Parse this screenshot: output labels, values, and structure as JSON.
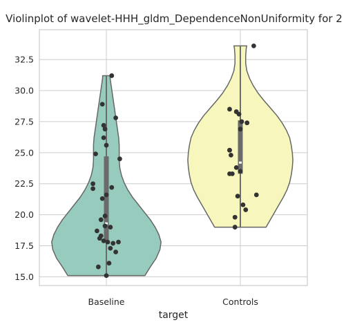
{
  "chart_data": {
    "type": "violin",
    "title": "Violinplot of wavelet-HHH_gldm_DependenceNonUniformity for 2",
    "xlabel": "target",
    "ylabel": "",
    "categories": [
      "Baseline",
      "Controls"
    ],
    "yticks": [
      15.0,
      17.5,
      20.0,
      22.5,
      25.0,
      27.5,
      30.0,
      32.5
    ],
    "ytick_labels": [
      "15.0",
      "17.5",
      "20.0",
      "22.5",
      "25.0",
      "27.5",
      "30.0",
      "32.5"
    ],
    "ylim": [
      14.3,
      34.9
    ],
    "grid": true,
    "colors": {
      "Baseline": "#96cbbe",
      "Controls": "#f7f7bd",
      "edge": "#666666",
      "points": "#333333",
      "grid": "#cccccc",
      "box": "#6b6b6b"
    },
    "series": [
      {
        "name": "Baseline",
        "min": 15.1,
        "q1": 17.8,
        "median": 19.3,
        "q3": 24.7,
        "max": 31.2,
        "density": [
          [
            15.1,
            0.72
          ],
          [
            15.8,
            0.82
          ],
          [
            16.5,
            0.93
          ],
          [
            17.2,
            1.0
          ],
          [
            17.8,
            1.02
          ],
          [
            18.4,
            0.98
          ],
          [
            19.0,
            0.91
          ],
          [
            19.6,
            0.82
          ],
          [
            20.2,
            0.71
          ],
          [
            20.8,
            0.6
          ],
          [
            21.4,
            0.49
          ],
          [
            22.0,
            0.4
          ],
          [
            22.6,
            0.33
          ],
          [
            23.2,
            0.28
          ],
          [
            23.8,
            0.25
          ],
          [
            24.4,
            0.24
          ],
          [
            25.0,
            0.24
          ],
          [
            25.6,
            0.24
          ],
          [
            26.2,
            0.23
          ],
          [
            26.8,
            0.21
          ],
          [
            27.4,
            0.19
          ],
          [
            28.0,
            0.17
          ],
          [
            28.6,
            0.15
          ],
          [
            29.2,
            0.13
          ],
          [
            29.8,
            0.11
          ],
          [
            30.4,
            0.09
          ],
          [
            31.0,
            0.07
          ],
          [
            31.2,
            0.07
          ]
        ],
        "points": [
          [
            0.04,
            31.2
          ],
          [
            -0.03,
            28.9
          ],
          [
            0.07,
            27.8
          ],
          [
            -0.02,
            27.2
          ],
          [
            -0.01,
            26.9
          ],
          [
            -0.02,
            26.2
          ],
          [
            0.0,
            25.6
          ],
          [
            -0.08,
            24.9
          ],
          [
            0.1,
            24.5
          ],
          [
            0.04,
            22.2
          ],
          [
            -0.1,
            22.5
          ],
          [
            -0.1,
            22.1
          ],
          [
            0.0,
            21.6
          ],
          [
            -0.03,
            21.3
          ],
          [
            -0.01,
            19.9
          ],
          [
            -0.04,
            19.6
          ],
          [
            -0.01,
            19.1
          ],
          [
            0.03,
            19.0
          ],
          [
            -0.07,
            18.7
          ],
          [
            -0.04,
            18.3
          ],
          [
            -0.05,
            18.1
          ],
          [
            -0.02,
            17.9
          ],
          [
            0.01,
            17.8
          ],
          [
            0.05,
            17.7
          ],
          [
            0.09,
            17.8
          ],
          [
            0.03,
            17.3
          ],
          [
            0.07,
            17.0
          ],
          [
            -0.06,
            15.8
          ],
          [
            0.02,
            16.1
          ],
          [
            0.0,
            15.1
          ]
        ]
      },
      {
        "name": "Controls",
        "min": 19.0,
        "q1": 23.3,
        "median": 24.2,
        "q3": 27.6,
        "max": 33.6,
        "density": [
          [
            19.0,
            0.48
          ],
          [
            19.6,
            0.56
          ],
          [
            20.2,
            0.64
          ],
          [
            20.8,
            0.72
          ],
          [
            21.4,
            0.8
          ],
          [
            22.0,
            0.87
          ],
          [
            22.6,
            0.92
          ],
          [
            23.2,
            0.95
          ],
          [
            23.8,
            0.97
          ],
          [
            24.4,
            0.98
          ],
          [
            25.0,
            0.97
          ],
          [
            25.6,
            0.95
          ],
          [
            26.2,
            0.92
          ],
          [
            26.8,
            0.86
          ],
          [
            27.4,
            0.78
          ],
          [
            28.0,
            0.68
          ],
          [
            28.6,
            0.56
          ],
          [
            29.2,
            0.44
          ],
          [
            29.8,
            0.33
          ],
          [
            30.4,
            0.24
          ],
          [
            31.0,
            0.17
          ],
          [
            31.6,
            0.12
          ],
          [
            32.2,
            0.1
          ],
          [
            32.8,
            0.1
          ],
          [
            33.4,
            0.11
          ],
          [
            33.6,
            0.12
          ]
        ],
        "points": [
          [
            0.1,
            33.6
          ],
          [
            -0.08,
            28.5
          ],
          [
            -0.03,
            28.3
          ],
          [
            -0.01,
            28.1
          ],
          [
            0.01,
            27.5
          ],
          [
            0.05,
            27.4
          ],
          [
            0.0,
            26.9
          ],
          [
            -0.08,
            25.2
          ],
          [
            -0.08,
            25.2
          ],
          [
            -0.07,
            24.8
          ],
          [
            -0.03,
            23.8
          ],
          [
            -0.06,
            23.3
          ],
          [
            -0.08,
            23.3
          ],
          [
            0.0,
            23.5
          ],
          [
            -0.02,
            21.5
          ],
          [
            0.12,
            21.6
          ],
          [
            0.02,
            20.8
          ],
          [
            0.04,
            20.4
          ],
          [
            -0.04,
            19.8
          ],
          [
            -0.04,
            19.0
          ]
        ]
      }
    ]
  }
}
